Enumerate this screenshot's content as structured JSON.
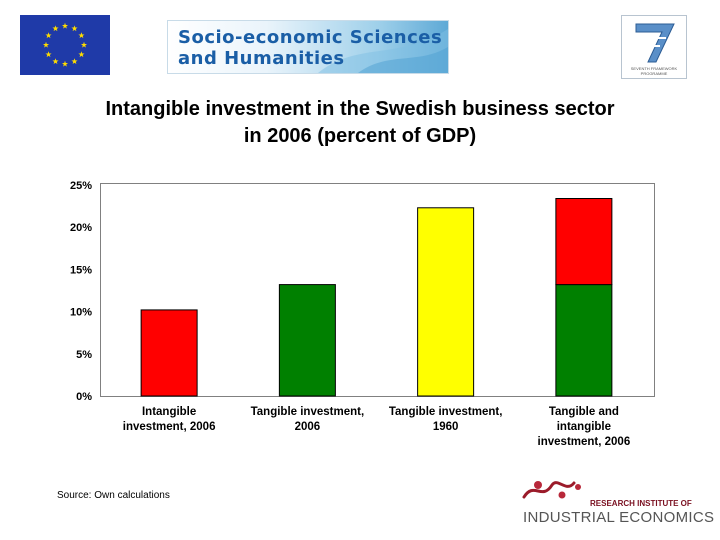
{
  "header": {
    "banner_line1": "Socio-economic Sciences",
    "banner_line2": "and Humanities",
    "fp7_caption": "SEVENTH FRAMEWORK PROGRAMME"
  },
  "colors": {
    "red": "#ff0000",
    "green": "#008000",
    "yellow": "#ffff00",
    "eu_blue": "#1f3aa8",
    "eu_star": "#ffdd00"
  },
  "chart_data": {
    "type": "bar",
    "title": "Intangible investment in the Swedish business sector in 2006 (percent of GDP)",
    "categories": [
      [
        "Intangible",
        "investment, 2006"
      ],
      [
        "Tangible investment,",
        "2006"
      ],
      [
        "Tangible investment,",
        "1960"
      ],
      [
        "Tangible and",
        "intangible",
        "investment, 2006"
      ]
    ],
    "bars": [
      {
        "segments": [
          {
            "value": 10.2,
            "color": "#ff0000"
          }
        ]
      },
      {
        "segments": [
          {
            "value": 13.2,
            "color": "#008000"
          }
        ]
      },
      {
        "segments": [
          {
            "value": 22.3,
            "color": "#ffff00"
          }
        ]
      },
      {
        "segments": [
          {
            "value": 13.2,
            "color": "#008000"
          },
          {
            "value": 10.2,
            "color": "#ff0000"
          }
        ]
      }
    ],
    "yticks": [
      "0%",
      "5%",
      "10%",
      "15%",
      "20%",
      "25%"
    ],
    "ylim": [
      0,
      25
    ],
    "grid": false,
    "legend": "none"
  },
  "footer": {
    "source": "Source: Own calculations",
    "logo_top": "RESEARCH INSTITUTE OF",
    "logo_bottom": "INDUSTRIAL ECONOMICS"
  }
}
